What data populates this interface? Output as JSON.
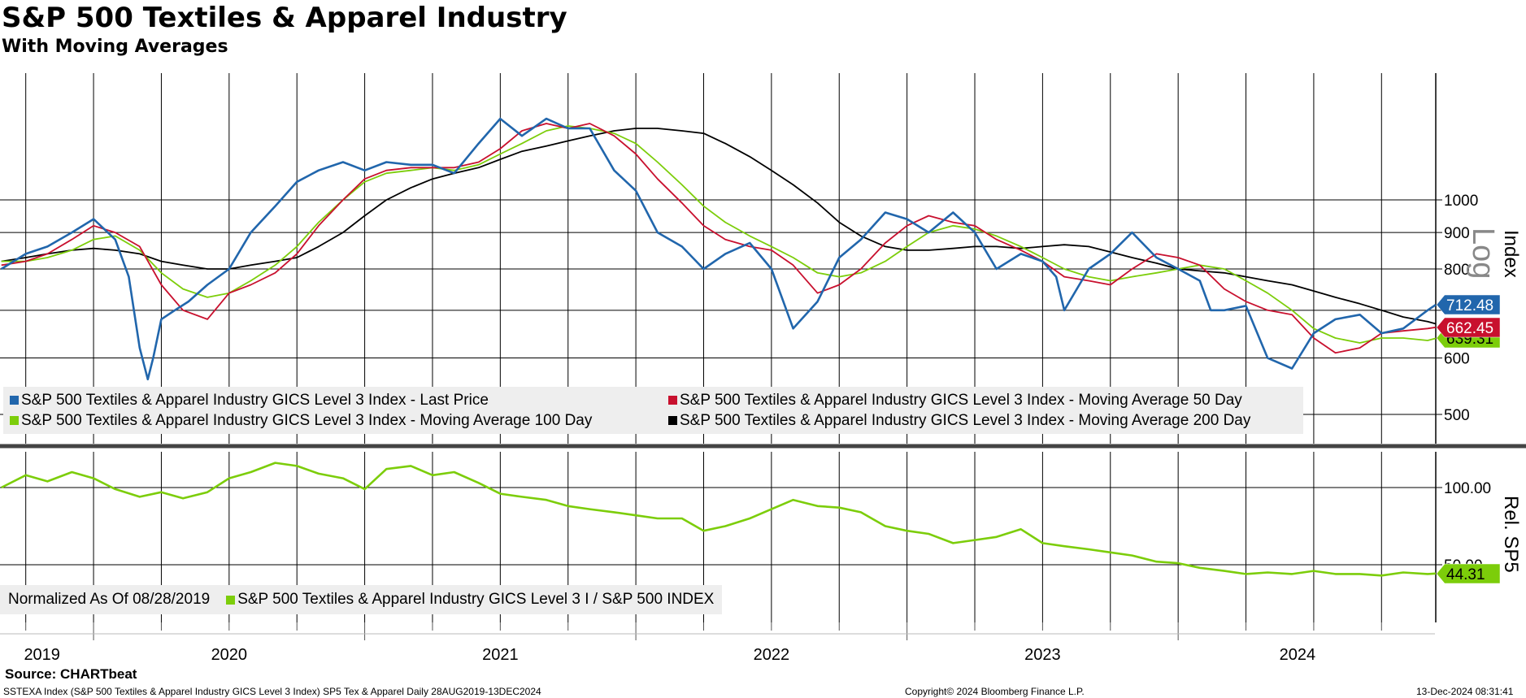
{
  "header": {
    "title": "S&P 500 Textiles & Apparel Industry",
    "subtitle": "With Moving Averages"
  },
  "chart_data": [
    {
      "type": "line",
      "panel": "upper",
      "scale": "log",
      "ylabel": "Index",
      "scale_label": "Log",
      "ylim": [
        450,
        1450
      ],
      "yticks": [
        500,
        600,
        700,
        800,
        900,
        1000
      ],
      "ytick_labels": [
        "500",
        "600",
        "",
        "800",
        "900",
        "1000"
      ],
      "xlim": [
        2019.655,
        2024.95
      ],
      "grid": true,
      "legend_position": "bottom-left",
      "series": [
        {
          "name": "S&P 500 Textiles & Apparel Industry GICS Level 3 Index - Last Price",
          "color": "#2166ac",
          "last_value": "712.48",
          "x": [
            2019.66,
            2019.75,
            2019.83,
            2019.92,
            2020.0,
            2020.08,
            2020.13,
            2020.17,
            2020.2,
            2020.22,
            2020.25,
            2020.3,
            2020.35,
            2020.42,
            2020.5,
            2020.58,
            2020.67,
            2020.75,
            2020.83,
            2020.92,
            2021.0,
            2021.08,
            2021.17,
            2021.25,
            2021.33,
            2021.42,
            2021.5,
            2021.58,
            2021.67,
            2021.75,
            2021.83,
            2021.92,
            2022.0,
            2022.08,
            2022.17,
            2022.25,
            2022.33,
            2022.42,
            2022.5,
            2022.58,
            2022.67,
            2022.75,
            2022.83,
            2022.92,
            2023.0,
            2023.08,
            2023.17,
            2023.25,
            2023.33,
            2023.42,
            2023.5,
            2023.55,
            2023.58,
            2023.67,
            2023.75,
            2023.83,
            2023.92,
            2024.0,
            2024.08,
            2024.12,
            2024.17,
            2024.25,
            2024.33,
            2024.42,
            2024.5,
            2024.58,
            2024.67,
            2024.75,
            2024.83,
            2024.92,
            2024.95
          ],
          "y": [
            800,
            840,
            860,
            900,
            940,
            880,
            780,
            620,
            560,
            600,
            680,
            700,
            720,
            760,
            800,
            900,
            980,
            1060,
            1100,
            1130,
            1100,
            1130,
            1120,
            1120,
            1090,
            1200,
            1300,
            1230,
            1300,
            1260,
            1260,
            1100,
            1030,
            900,
            860,
            800,
            840,
            870,
            800,
            660,
            720,
            830,
            880,
            960,
            940,
            900,
            960,
            900,
            800,
            840,
            820,
            780,
            700,
            800,
            840,
            900,
            830,
            800,
            770,
            700,
            700,
            710,
            600,
            580,
            650,
            680,
            690,
            650,
            660,
            700,
            712.48
          ]
        },
        {
          "name": "S&P 500 Textiles & Apparel Industry GICS Level 3 Index - Moving Average 50 Day",
          "color": "#c8102e",
          "last_value": "662.45",
          "x": [
            2019.66,
            2019.75,
            2019.83,
            2019.92,
            2020.0,
            2020.08,
            2020.17,
            2020.25,
            2020.33,
            2020.42,
            2020.5,
            2020.58,
            2020.67,
            2020.75,
            2020.83,
            2020.92,
            2021.0,
            2021.08,
            2021.17,
            2021.25,
            2021.33,
            2021.42,
            2021.5,
            2021.58,
            2021.67,
            2021.75,
            2021.83,
            2021.92,
            2022.0,
            2022.08,
            2022.17,
            2022.25,
            2022.33,
            2022.42,
            2022.5,
            2022.58,
            2022.67,
            2022.75,
            2022.83,
            2022.92,
            2023.0,
            2023.08,
            2023.17,
            2023.25,
            2023.33,
            2023.42,
            2023.5,
            2023.58,
            2023.67,
            2023.75,
            2023.83,
            2023.92,
            2024.0,
            2024.08,
            2024.17,
            2024.25,
            2024.33,
            2024.42,
            2024.5,
            2024.58,
            2024.67,
            2024.75,
            2024.83,
            2024.92,
            2024.95
          ],
          "y": [
            810,
            820,
            840,
            880,
            920,
            900,
            860,
            760,
            700,
            680,
            740,
            760,
            790,
            840,
            920,
            1000,
            1070,
            1100,
            1110,
            1110,
            1110,
            1130,
            1180,
            1250,
            1280,
            1260,
            1280,
            1230,
            1160,
            1070,
            990,
            920,
            880,
            860,
            850,
            810,
            740,
            760,
            800,
            870,
            920,
            950,
            930,
            920,
            880,
            850,
            820,
            780,
            770,
            760,
            800,
            840,
            830,
            810,
            750,
            720,
            700,
            690,
            640,
            610,
            620,
            650,
            655,
            660,
            662.45
          ]
        },
        {
          "name": "S&P 500 Textiles & Apparel Industry GICS Level 3 Index - Moving Average 100 Day",
          "color": "#7ccd0a",
          "last_value": "639.31",
          "x": [
            2019.66,
            2019.75,
            2019.83,
            2019.92,
            2020.0,
            2020.08,
            2020.17,
            2020.25,
            2020.33,
            2020.42,
            2020.5,
            2020.58,
            2020.67,
            2020.75,
            2020.83,
            2020.92,
            2021.0,
            2021.08,
            2021.17,
            2021.25,
            2021.33,
            2021.42,
            2021.5,
            2021.58,
            2021.67,
            2021.75,
            2021.83,
            2021.92,
            2022.0,
            2022.08,
            2022.17,
            2022.25,
            2022.33,
            2022.42,
            2022.5,
            2022.58,
            2022.67,
            2022.75,
            2022.83,
            2022.92,
            2023.0,
            2023.08,
            2023.17,
            2023.25,
            2023.33,
            2023.42,
            2023.5,
            2023.58,
            2023.67,
            2023.75,
            2023.83,
            2023.92,
            2024.0,
            2024.08,
            2024.17,
            2024.25,
            2024.33,
            2024.42,
            2024.5,
            2024.58,
            2024.67,
            2024.75,
            2024.83,
            2024.92,
            2024.95
          ],
          "y": [
            820,
            820,
            830,
            850,
            880,
            890,
            850,
            790,
            750,
            730,
            740,
            770,
            810,
            860,
            930,
            1000,
            1060,
            1090,
            1100,
            1110,
            1100,
            1120,
            1160,
            1200,
            1250,
            1270,
            1260,
            1240,
            1200,
            1130,
            1050,
            980,
            930,
            890,
            860,
            830,
            790,
            780,
            790,
            820,
            860,
            900,
            920,
            910,
            890,
            860,
            830,
            800,
            780,
            770,
            780,
            790,
            800,
            810,
            800,
            770,
            740,
            700,
            660,
            640,
            630,
            640,
            640,
            635,
            639.31
          ]
        },
        {
          "name": "S&P 500 Textiles & Apparel Industry GICS Level 3 Index - Moving Average 200 Day",
          "color": "#000000",
          "last_value": "",
          "x": [
            2019.66,
            2019.75,
            2019.83,
            2019.92,
            2020.0,
            2020.08,
            2020.17,
            2020.25,
            2020.33,
            2020.42,
            2020.5,
            2020.58,
            2020.67,
            2020.75,
            2020.83,
            2020.92,
            2021.0,
            2021.08,
            2021.17,
            2021.25,
            2021.33,
            2021.42,
            2021.5,
            2021.58,
            2021.67,
            2021.75,
            2021.83,
            2021.92,
            2022.0,
            2022.08,
            2022.17,
            2022.25,
            2022.33,
            2022.42,
            2022.5,
            2022.58,
            2022.67,
            2022.75,
            2022.83,
            2022.92,
            2023.0,
            2023.08,
            2023.17,
            2023.25,
            2023.33,
            2023.42,
            2023.5,
            2023.58,
            2023.67,
            2023.75,
            2023.83,
            2023.92,
            2024.0,
            2024.08,
            2024.17,
            2024.25,
            2024.33,
            2024.42,
            2024.5,
            2024.58,
            2024.67,
            2024.75,
            2024.83,
            2024.92,
            2024.95
          ],
          "y": [
            820,
            830,
            840,
            850,
            855,
            850,
            840,
            820,
            810,
            800,
            800,
            810,
            820,
            830,
            860,
            900,
            950,
            1000,
            1040,
            1070,
            1090,
            1110,
            1140,
            1170,
            1190,
            1210,
            1230,
            1250,
            1260,
            1260,
            1250,
            1240,
            1200,
            1150,
            1100,
            1050,
            990,
            930,
            890,
            860,
            850,
            850,
            855,
            860,
            860,
            855,
            860,
            865,
            860,
            845,
            830,
            815,
            800,
            795,
            790,
            780,
            770,
            760,
            745,
            730,
            715,
            700,
            685,
            675,
            670
          ]
        }
      ]
    },
    {
      "type": "line",
      "panel": "lower",
      "ylabel": "Rel. SP5",
      "ylim": [
        30,
        130
      ],
      "yticks": [
        50,
        100
      ],
      "ytick_labels": [
        "50.00",
        "100.00"
      ],
      "xlim": [
        2019.655,
        2024.95
      ],
      "grid": true,
      "legend_position": "bottom-left",
      "normalized_label": "Normalized As Of 08/28/2019",
      "series": [
        {
          "name": "S&P 500 Textiles & Apparel Industry GICS Level 3 I / S&P 500 INDEX",
          "color": "#7ccd0a",
          "last_value": "44.31",
          "x": [
            2019.66,
            2019.75,
            2019.83,
            2019.92,
            2020.0,
            2020.08,
            2020.17,
            2020.25,
            2020.33,
            2020.42,
            2020.5,
            2020.58,
            2020.67,
            2020.75,
            2020.83,
            2020.92,
            2021.0,
            2021.08,
            2021.17,
            2021.25,
            2021.33,
            2021.42,
            2021.5,
            2021.58,
            2021.67,
            2021.75,
            2021.83,
            2021.92,
            2022.0,
            2022.08,
            2022.17,
            2022.25,
            2022.33,
            2022.42,
            2022.5,
            2022.58,
            2022.67,
            2022.75,
            2022.83,
            2022.92,
            2023.0,
            2023.08,
            2023.17,
            2023.25,
            2023.33,
            2023.42,
            2023.5,
            2023.58,
            2023.67,
            2023.75,
            2023.83,
            2023.92,
            2024.0,
            2024.08,
            2024.17,
            2024.25,
            2024.33,
            2024.42,
            2024.5,
            2024.58,
            2024.67,
            2024.75,
            2024.83,
            2024.92,
            2024.95
          ],
          "y": [
            100,
            108,
            104,
            110,
            106,
            99,
            94,
            97,
            93,
            97,
            106,
            110,
            116,
            114,
            109,
            106,
            99,
            112,
            114,
            108,
            110,
            103,
            96,
            94,
            92,
            88,
            86,
            84,
            82,
            80,
            80,
            72,
            75,
            80,
            86,
            92,
            88,
            87,
            84,
            75,
            72,
            70,
            64,
            66,
            68,
            73,
            64,
            62,
            60,
            58,
            56,
            52,
            51,
            48,
            46,
            44,
            45,
            44,
            46,
            44,
            44,
            43,
            45,
            44,
            44.31
          ]
        }
      ]
    }
  ],
  "xaxis": {
    "year_labels": [
      "2019",
      "2020",
      "2021",
      "2022",
      "2023",
      "2024"
    ],
    "year_label_positions": [
      2019.81,
      2020.5,
      2021.5,
      2022.5,
      2023.5,
      2024.44
    ]
  },
  "footer": {
    "source": "Source: CHARTbeat",
    "description": "SSTEXA Index (S&P 500 Textiles & Apparel Industry GICS Level 3 Index) SP5 Tex & Apparel  Daily 28AUG2019-13DEC2024",
    "copyright": "Copyright© 2024 Bloomberg Finance L.P.",
    "timestamp": "13-Dec-2024 08:31:41"
  },
  "legend_upper": [
    {
      "label": "S&P 500 Textiles & Apparel Industry GICS Level 3 Index - Last Price",
      "color": "#2166ac"
    },
    {
      "label": "S&P 500 Textiles & Apparel Industry GICS Level 3 Index - Moving Average 50 Day",
      "color": "#c8102e"
    },
    {
      "label": "S&P 500 Textiles & Apparel Industry GICS Level 3 Index - Moving Average 100 Day",
      "color": "#7ccd0a"
    },
    {
      "label": "S&P 500 Textiles & Apparel Industry GICS Level 3 Index - Moving Average 200 Day",
      "color": "#000000"
    }
  ],
  "legend_lower": {
    "normalized": "Normalized As Of 08/28/2019",
    "label": "S&P 500 Textiles & Apparel Industry GICS Level 3 I / S&P 500 INDEX",
    "color": "#7ccd0a"
  }
}
